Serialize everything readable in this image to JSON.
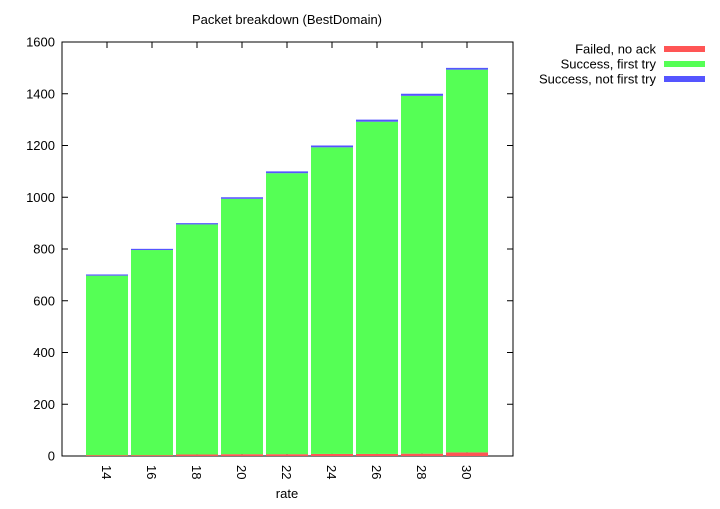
{
  "chart_data": {
    "type": "bar",
    "stacked": true,
    "title": "Packet breakdown (BestDomain)",
    "xlabel": "rate",
    "ylabel": "",
    "categories": [
      "14",
      "16",
      "18",
      "20",
      "22",
      "24",
      "26",
      "28",
      "30"
    ],
    "ylim": [
      0,
      1600
    ],
    "yticks": [
      0,
      200,
      400,
      600,
      800,
      1000,
      1200,
      1400,
      1600
    ],
    "grid": false,
    "legend": "top-right, outside plot",
    "series": [
      {
        "name": "Failed, no ack",
        "color": "#ff5555",
        "values": [
          3,
          3,
          6,
          7,
          7,
          8,
          8,
          9,
          14
        ]
      },
      {
        "name": "Success, first try",
        "color": "#55ff55",
        "values": [
          694,
          793,
          889,
          987,
          1086,
          1185,
          1284,
          1383,
          1479
        ]
      },
      {
        "name": "Success, not first try",
        "color": "#5555ff",
        "values": [
          3,
          4,
          5,
          6,
          7,
          7,
          8,
          8,
          7
        ]
      }
    ]
  }
}
